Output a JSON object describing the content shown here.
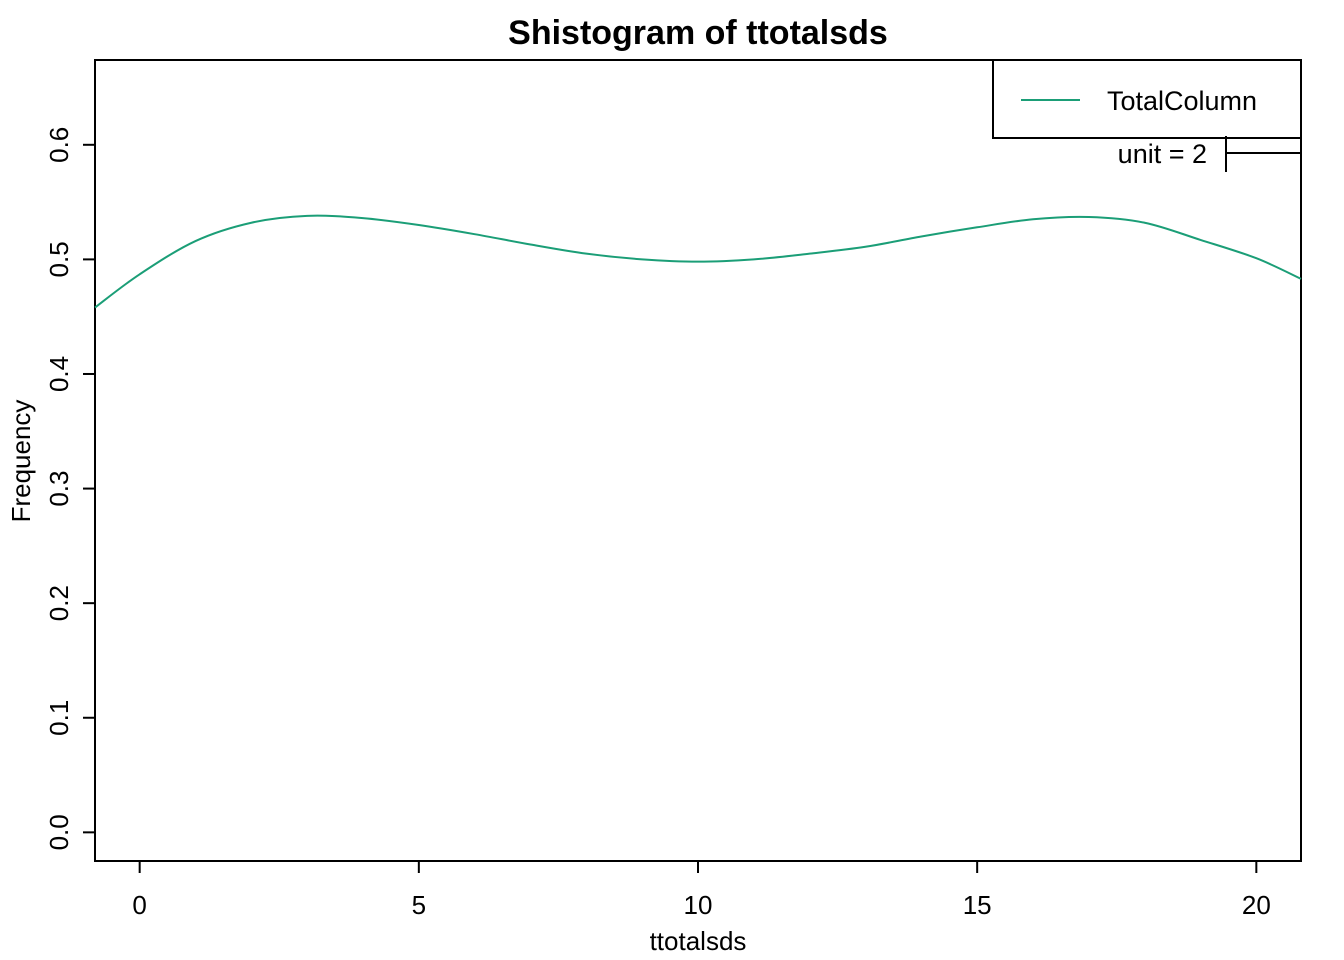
{
  "chart_data": {
    "type": "line",
    "title": "Shistogram of ttotalsds",
    "xlabel": "ttotalsds",
    "ylabel": "Frequency",
    "xlim": [
      -0.8,
      20.8
    ],
    "ylim": [
      -0.025,
      0.674
    ],
    "x_ticks": [
      0,
      5,
      10,
      15,
      20
    ],
    "y_ticks": [
      0.0,
      0.1,
      0.2,
      0.3,
      0.4,
      0.5,
      0.6
    ],
    "x_tick_labels": [
      "0",
      "5",
      "10",
      "15",
      "20"
    ],
    "y_tick_labels": [
      "0.0",
      "0.1",
      "0.2",
      "0.3",
      "0.4",
      "0.5",
      "0.6"
    ],
    "grid": false,
    "legend": {
      "position": "top-right",
      "entries": [
        "TotalColumn"
      ]
    },
    "annotation": {
      "text": "unit = 2",
      "unit_value": 2
    },
    "series": [
      {
        "name": "TotalColumn",
        "color": "#1b9e77",
        "x": [
          -0.8,
          0,
          1,
          2,
          3,
          4,
          5,
          6,
          7,
          8,
          9,
          10,
          11,
          12,
          13,
          14,
          15,
          16,
          17,
          18,
          19,
          20,
          20.8
        ],
        "y": [
          0.458,
          0.487,
          0.516,
          0.532,
          0.538,
          0.536,
          0.53,
          0.522,
          0.513,
          0.505,
          0.5,
          0.498,
          0.5,
          0.505,
          0.511,
          0.52,
          0.528,
          0.535,
          0.537,
          0.532,
          0.517,
          0.501,
          0.483
        ]
      }
    ]
  }
}
